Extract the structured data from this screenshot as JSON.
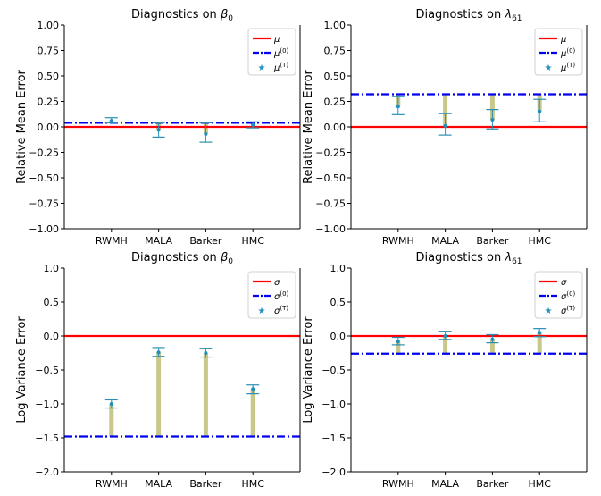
{
  "chart_data": [
    {
      "type": "errorbar",
      "title": "Diagnostics on β0",
      "ylabel": "Relative Mean Error",
      "categories": [
        "RWMH",
        "MALA",
        "Barker",
        "HMC"
      ],
      "ylim": [
        -1.0,
        1.0
      ],
      "yticks": [
        1.0,
        0.75,
        0.5,
        0.25,
        0.0,
        -0.25,
        -0.5,
        -0.75,
        -1.0
      ],
      "ytick_labels": [
        "1.00",
        "0.75",
        "0.50",
        "0.25",
        "0.00",
        "−0.25",
        "−0.50",
        "−0.75",
        "−1.00"
      ],
      "reference_line": 0.0,
      "initial_line": 0.04,
      "series": [
        {
          "name": "estimate",
          "values": [
            0.06,
            -0.03,
            -0.07,
            0.02
          ],
          "err_low": [
            0.04,
            -0.1,
            -0.15,
            -0.01
          ],
          "err_high": [
            0.09,
            0.04,
            0.04,
            0.05
          ]
        }
      ],
      "legend": {
        "position": "top-right",
        "entries": [
          "μ",
          "μ(0)",
          "μ(T)"
        ]
      }
    },
    {
      "type": "errorbar",
      "title": "Diagnostics on λ61",
      "ylabel": "Relative Mean Error",
      "categories": [
        "RWMH",
        "MALA",
        "Barker",
        "HMC"
      ],
      "ylim": [
        -1.0,
        1.0
      ],
      "yticks": [
        1.0,
        0.75,
        0.5,
        0.25,
        0.0,
        -0.25,
        -0.5,
        -0.75,
        -1.0
      ],
      "ytick_labels": [
        "1.00",
        "0.75",
        "0.50",
        "0.25",
        "0.00",
        "−0.25",
        "−0.50",
        "−0.75",
        "−1.00"
      ],
      "reference_line": 0.0,
      "initial_line": 0.32,
      "series": [
        {
          "name": "estimate",
          "values": [
            0.2,
            0.01,
            0.07,
            0.15
          ],
          "err_low": [
            0.12,
            -0.08,
            -0.02,
            0.05
          ],
          "err_high": [
            0.3,
            0.13,
            0.17,
            0.27
          ]
        }
      ],
      "legend": {
        "position": "top-right",
        "entries": [
          "μ",
          "μ(0)",
          "μ(T)"
        ]
      }
    },
    {
      "type": "errorbar",
      "title": "Diagnostics on β0",
      "ylabel": "Log Variance Error",
      "categories": [
        "RWMH",
        "MALA",
        "Barker",
        "HMC"
      ],
      "ylim": [
        -2.0,
        1.0
      ],
      "yticks": [
        1.0,
        0.5,
        0.0,
        -0.5,
        -1.0,
        -1.5,
        -2.0
      ],
      "ytick_labels": [
        "1.0",
        "0.5",
        "0.0",
        "−0.5",
        "−1.0",
        "−1.5",
        "−2.0"
      ],
      "reference_line": 0.0,
      "initial_line": -1.48,
      "series": [
        {
          "name": "estimate",
          "values": [
            -1.0,
            -0.24,
            -0.25,
            -0.78
          ],
          "err_low": [
            -1.06,
            -0.3,
            -0.31,
            -0.85
          ],
          "err_high": [
            -0.94,
            -0.17,
            -0.18,
            -0.72
          ]
        }
      ],
      "legend": {
        "position": "top-right",
        "entries": [
          "σ",
          "σ(0)",
          "σ(T)"
        ]
      }
    },
    {
      "type": "errorbar",
      "title": "Diagnostics on λ61",
      "ylabel": "Log Variance Error",
      "categories": [
        "RWMH",
        "MALA",
        "Barker",
        "HMC"
      ],
      "ylim": [
        -2.0,
        1.0
      ],
      "yticks": [
        1.0,
        0.5,
        0.0,
        -0.5,
        -1.0,
        -1.5,
        -2.0
      ],
      "ytick_labels": [
        "1.0",
        "0.5",
        "0.0",
        "−0.5",
        "−1.0",
        "−1.5",
        "−2.0"
      ],
      "reference_line": 0.0,
      "initial_line": -0.26,
      "series": [
        {
          "name": "estimate",
          "values": [
            -0.08,
            0.0,
            -0.05,
            0.05
          ],
          "err_low": [
            -0.13,
            -0.05,
            -0.1,
            -0.01
          ],
          "err_high": [
            -0.02,
            0.07,
            0.02,
            0.11
          ]
        }
      ],
      "legend": {
        "position": "top-right",
        "entries": [
          "σ",
          "σ(0)",
          "σ(T)"
        ]
      }
    }
  ],
  "colors": {
    "reference": "#ff0000",
    "initial": "#0000ee",
    "marker": "#1f8fbf",
    "errorbar": "#2a8fb5",
    "fill": "#c8c88a",
    "axis": "#000000"
  }
}
